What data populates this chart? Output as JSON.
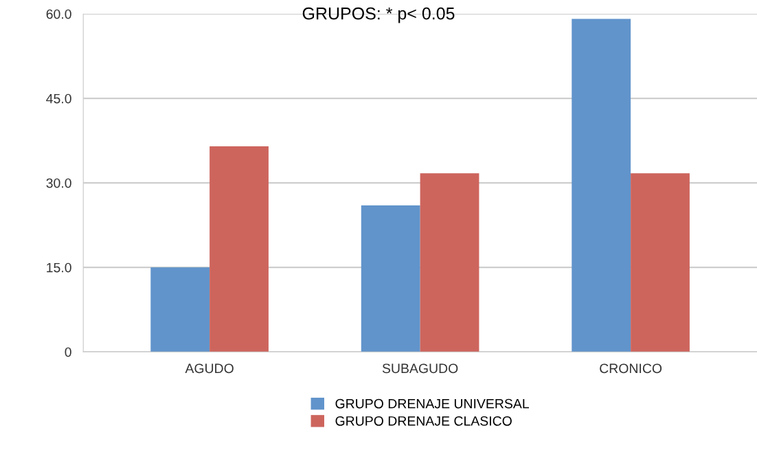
{
  "chart_data": {
    "type": "bar",
    "title": "GRUPOS: * p< 0.05",
    "categories": [
      "AGUDO",
      "SUBAGUDO",
      "CRONICO"
    ],
    "series": [
      {
        "name": "GRUPO DRENAJE UNIVERSAL",
        "color": "#6194cb",
        "values": [
          15.0,
          26.0,
          59.1
        ]
      },
      {
        "name": "GRUPO DRENAJE CLASICO",
        "color": "#cd655d",
        "values": [
          36.5,
          31.7,
          31.7
        ]
      }
    ],
    "ylim": [
      0,
      60
    ],
    "yticks": [
      {
        "value": 0,
        "label": "0"
      },
      {
        "value": 15,
        "label": "15.0"
      },
      {
        "value": 30,
        "label": "30.0"
      },
      {
        "value": 45,
        "label": "45.0"
      },
      {
        "value": 60,
        "label": "60.0"
      }
    ],
    "grid": "y",
    "legend": "bottom"
  }
}
